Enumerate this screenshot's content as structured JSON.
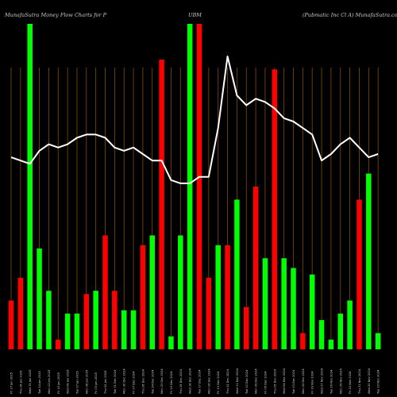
{
  "chart_data": {
    "type": "bar",
    "title": {
      "left": "MunafaSutra  Money Flow  Charts for P",
      "center": "UBM",
      "right": "(Pubmatic Inc Cl A) MunafaSutra.com"
    },
    "colors": {
      "background": "#000000",
      "up": "#00ff00",
      "down": "#ff0000",
      "grid": "#8a4a00",
      "line": "#ffffff",
      "text": "#cccccc"
    },
    "ylim": [
      0,
      100
    ],
    "bars": [
      {
        "label": "Fri 17 Jan 2025",
        "value": 15,
        "dir": "down"
      },
      {
        "label": "Thu 16 Jan 2025",
        "value": 22,
        "dir": "down"
      },
      {
        "label": "Wed 15 Jan 2025",
        "value": 100,
        "dir": "up"
      },
      {
        "label": "Tue 14 Jan 2025",
        "value": 31,
        "dir": "up"
      },
      {
        "label": "Mon 13 Jan 2025",
        "value": 18,
        "dir": "up"
      },
      {
        "label": "Fri 10 Jan 2025",
        "value": 3,
        "dir": "down"
      },
      {
        "label": "Wed 08 Jan 2025",
        "value": 11,
        "dir": "up"
      },
      {
        "label": "Tue 07 Jan 2025",
        "value": 11,
        "dir": "up"
      },
      {
        "label": "Mon 06 Jan 2025",
        "value": 17,
        "dir": "down"
      },
      {
        "label": "Fri 03 Jan 2025",
        "value": 18,
        "dir": "up"
      },
      {
        "label": "Thu 02 Jan 2025",
        "value": 35,
        "dir": "down"
      },
      {
        "label": "Tue 31 Dec 2024",
        "value": 18,
        "dir": "down"
      },
      {
        "label": "Mon 30 Dec 2024",
        "value": 12,
        "dir": "up"
      },
      {
        "label": "Fri 27 Dec 2024",
        "value": 12,
        "dir": "up"
      },
      {
        "label": "Thu 26 Dec 2024",
        "value": 32,
        "dir": "down"
      },
      {
        "label": "Tue 24 Dec 2024",
        "value": 35,
        "dir": "up"
      },
      {
        "label": "Mon 23 Dec 2024",
        "value": 89,
        "dir": "down"
      },
      {
        "label": "Fri 20 Dec 2024",
        "value": 4,
        "dir": "up"
      },
      {
        "label": "Thu 19 Dec 2024",
        "value": 35,
        "dir": "up"
      },
      {
        "label": "Wed 18 Dec 2024",
        "value": 100,
        "dir": "up"
      },
      {
        "label": "Tue 17 Dec 2024",
        "value": 100,
        "dir": "down"
      },
      {
        "label": "Mon 16 Dec 2024",
        "value": 22,
        "dir": "down"
      },
      {
        "label": "Fri 13 Dec 2024",
        "value": 32,
        "dir": "up"
      },
      {
        "label": "Thu 12 Dec 2024",
        "value": 32,
        "dir": "down"
      },
      {
        "label": "Wed 11 Dec 2024",
        "value": 46,
        "dir": "up"
      },
      {
        "label": "Tue 10 Dec 2024",
        "value": 13,
        "dir": "down"
      },
      {
        "label": "Mon 09 Dec 2024",
        "value": 50,
        "dir": "down"
      },
      {
        "label": "Fri 06 Dec 2024",
        "value": 28,
        "dir": "up"
      },
      {
        "label": "Thu 05 Dec 2024",
        "value": 86,
        "dir": "down"
      },
      {
        "label": "Wed 04 Dec 2024",
        "value": 28,
        "dir": "up"
      },
      {
        "label": "Tue 03 Dec 2024",
        "value": 25,
        "dir": "up"
      },
      {
        "label": "Mon 02 Dec 2024",
        "value": 5,
        "dir": "down"
      },
      {
        "label": "Fri 29 Nov 2024",
        "value": 23,
        "dir": "up"
      },
      {
        "label": "Wed 27 Nov 2024",
        "value": 9,
        "dir": "up"
      },
      {
        "label": "Tue 26 Nov 2024",
        "value": 3,
        "dir": "up"
      },
      {
        "label": "Mon 25 Nov 2024",
        "value": 11,
        "dir": "up"
      },
      {
        "label": "Fri 22 Nov 2024",
        "value": 15,
        "dir": "up"
      },
      {
        "label": "Thu 21 Nov 2024",
        "value": 46,
        "dir": "down"
      },
      {
        "label": "Wed 20 Nov 2024",
        "value": 54,
        "dir": "up"
      },
      {
        "label": "Tue 19 Nov 2024",
        "value": 5,
        "dir": "up"
      }
    ],
    "price_line": [
      59,
      58,
      57,
      61,
      63,
      62,
      63,
      65,
      66,
      66,
      65,
      62,
      61,
      62,
      60,
      58,
      58,
      52,
      51,
      51,
      53,
      53,
      68,
      90,
      78,
      75,
      77,
      76,
      74,
      71,
      70,
      68,
      66,
      58,
      60,
      63,
      65,
      62,
      59,
      60
    ]
  }
}
